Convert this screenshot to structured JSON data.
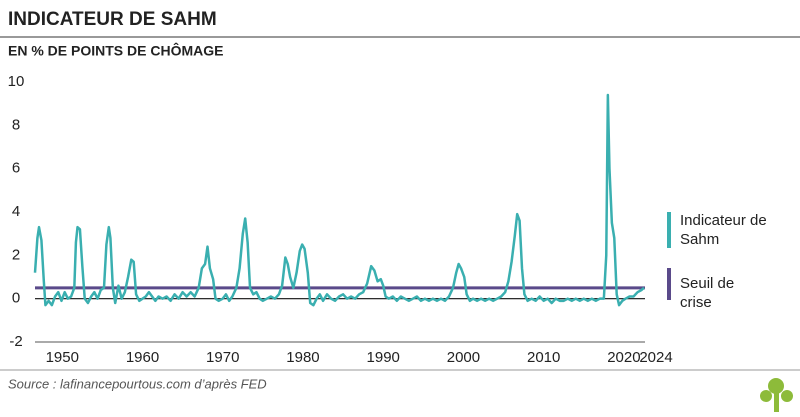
{
  "chart_data": {
    "type": "line",
    "title": "INDICATEUR DE SAHM",
    "subtitle": "EN % DE POINTS DE CHÔMAGE",
    "source": "Source : lafinancepourtous.com d’après FED",
    "x": [
      1946.6,
      1946.9,
      1947.1,
      1947.4,
      1947.7,
      1947.9,
      1948.3,
      1948.7,
      1949.1,
      1949.5,
      1949.9,
      1950.3,
      1950.7,
      1951.1,
      1951.5,
      1951.7,
      1951.9,
      1952.2,
      1952.5,
      1952.8,
      1953.2,
      1953.6,
      1954.0,
      1954.4,
      1954.8,
      1955.2,
      1955.5,
      1955.8,
      1956.0,
      1956.3,
      1956.6,
      1957.0,
      1957.4,
      1957.8,
      1958.2,
      1958.6,
      1958.9,
      1959.2,
      1959.6,
      1960.0,
      1960.4,
      1960.8,
      1961.2,
      1961.6,
      1962.0,
      1962.5,
      1963.0,
      1963.5,
      1964.0,
      1964.5,
      1965.0,
      1965.5,
      1966.0,
      1966.5,
      1967.0,
      1967.4,
      1967.8,
      1968.1,
      1968.4,
      1968.8,
      1969.1,
      1969.5,
      1970.0,
      1970.4,
      1970.8,
      1971.2,
      1971.7,
      1972.1,
      1972.5,
      1972.8,
      1973.1,
      1973.4,
      1973.8,
      1974.2,
      1974.6,
      1975.0,
      1975.5,
      1976.0,
      1976.5,
      1977.0,
      1977.4,
      1977.8,
      1978.1,
      1978.4,
      1978.8,
      1979.2,
      1979.6,
      1979.9,
      1980.2,
      1980.6,
      1980.9,
      1981.3,
      1981.7,
      1982.1,
      1982.5,
      1983.0,
      1983.5,
      1984.0,
      1984.5,
      1985.0,
      1985.5,
      1986.0,
      1986.5,
      1987.0,
      1987.5,
      1988.0,
      1988.5,
      1988.9,
      1989.3,
      1989.7,
      1990.0,
      1990.3,
      1990.7,
      1991.2,
      1991.7,
      1992.2,
      1992.7,
      1993.2,
      1993.7,
      1994.2,
      1994.7,
      1995.2,
      1995.7,
      1996.2,
      1996.7,
      1997.2,
      1997.7,
      1998.2,
      1998.7,
      1999.1,
      1999.4,
      1999.7,
      2000.1,
      2000.4,
      2000.8,
      2001.2,
      2001.7,
      2002.2,
      2002.7,
      2003.2,
      2003.7,
      2004.2,
      2004.7,
      2005.2,
      2005.6,
      2006.0,
      2006.4,
      2006.7,
      2007.0,
      2007.3,
      2007.6,
      2008.0,
      2008.5,
      2009.0,
      2009.5,
      2010.0,
      2010.5,
      2011.0,
      2011.5,
      2012.0,
      2012.5,
      2013.0,
      2013.5,
      2014.0,
      2014.5,
      2015.0,
      2015.5,
      2016.0,
      2016.5,
      2017.0,
      2017.5,
      2017.8,
      2018.0,
      2018.2,
      2018.5,
      2018.8,
      2019.1,
      2019.4,
      2019.8,
      2020.2,
      2020.7,
      2021.2,
      2021.7,
      2022.2,
      2022.5
    ],
    "series": [
      {
        "name": "Indicateur de Sahm",
        "color": "#3aafb0",
        "values": [
          1.2,
          2.8,
          3.3,
          2.7,
          0.8,
          -0.3,
          -0.1,
          -0.3,
          0.1,
          0.3,
          -0.1,
          0.3,
          0.0,
          0.1,
          0.5,
          2.6,
          3.3,
          3.2,
          1.5,
          0.0,
          -0.2,
          0.1,
          0.3,
          0.0,
          0.4,
          0.5,
          2.5,
          3.3,
          2.8,
          0.5,
          -0.2,
          0.6,
          0.0,
          0.3,
          1.0,
          1.8,
          1.7,
          0.2,
          -0.1,
          0.0,
          0.1,
          0.3,
          0.1,
          -0.1,
          0.1,
          0.0,
          0.1,
          -0.1,
          0.2,
          0.0,
          0.3,
          0.1,
          0.3,
          0.1,
          0.5,
          1.4,
          1.6,
          2.4,
          1.4,
          0.9,
          0.0,
          -0.1,
          0.0,
          0.2,
          -0.1,
          0.1,
          0.5,
          1.4,
          3.0,
          3.7,
          2.6,
          0.5,
          0.2,
          0.3,
          0.0,
          -0.1,
          0.0,
          0.1,
          0.0,
          0.2,
          0.6,
          1.9,
          1.6,
          1.0,
          0.5,
          1.2,
          2.2,
          2.5,
          2.3,
          1.2,
          -0.2,
          -0.3,
          0.0,
          0.2,
          -0.1,
          0.2,
          0.0,
          -0.1,
          0.1,
          0.2,
          0.0,
          0.1,
          0.0,
          0.2,
          0.3,
          0.7,
          1.5,
          1.3,
          0.8,
          0.9,
          0.6,
          0.1,
          0.0,
          0.1,
          -0.1,
          0.1,
          0.0,
          -0.1,
          0.0,
          0.1,
          -0.1,
          0.0,
          -0.1,
          0.0,
          -0.1,
          0.0,
          -0.1,
          0.1,
          0.5,
          1.2,
          1.6,
          1.4,
          1.0,
          0.2,
          -0.1,
          0.0,
          -0.1,
          0.0,
          -0.1,
          0.0,
          -0.1,
          0.0,
          0.1,
          0.3,
          0.8,
          1.7,
          2.9,
          3.9,
          3.6,
          1.4,
          0.2,
          -0.1,
          0.0,
          -0.1,
          0.1,
          -0.1,
          0.0,
          -0.2,
          0.0,
          -0.1,
          -0.1,
          0.0,
          -0.1,
          0.0,
          -0.1,
          0.0,
          -0.1,
          0.0,
          -0.1,
          0.0,
          0.0,
          2.0,
          9.4,
          6.0,
          3.5,
          2.8,
          0.2,
          -0.3,
          -0.1,
          0.0,
          0.1,
          0.1,
          0.3,
          0.4,
          0.5
        ]
      }
    ],
    "threshold": {
      "name": "Seuil de crise",
      "color": "#5a4a8a",
      "value": 0.5
    },
    "xlim": [
      1946.6,
      2024
    ],
    "xticks": [
      1950,
      1960,
      1970,
      1980,
      1990,
      2000,
      2010,
      2020,
      2024
    ],
    "ylim": [
      -2,
      10
    ],
    "yticks": [
      -2,
      0,
      2,
      4,
      6,
      8,
      10
    ],
    "grid": false
  }
}
